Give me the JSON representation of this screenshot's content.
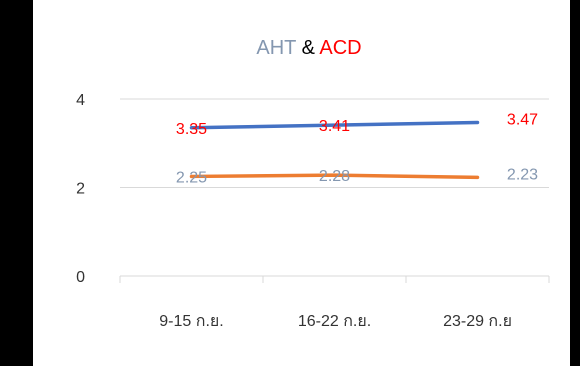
{
  "chart_data": {
    "type": "line",
    "title_parts": [
      {
        "text": "AHT",
        "color": "#8497B0"
      },
      {
        "text": " & ",
        "color": "#000000"
      },
      {
        "text": "ACD",
        "color": "#FF0000"
      }
    ],
    "categories": [
      "9-15 ก.ย.",
      "16-22 ก.ย.",
      "23-29 ก.ย"
    ],
    "series": [
      {
        "values": [
          3.35,
          3.41,
          3.47
        ],
        "line_color": "#4472C4",
        "label_color": "#FF0000",
        "labels": [
          "3.35",
          "3.41",
          "3.47"
        ]
      },
      {
        "values": [
          2.25,
          2.28,
          2.23
        ],
        "line_color": "#ED7D31",
        "label_color": "#8497B0",
        "labels": [
          "2.25",
          "2.28",
          "2.23"
        ]
      }
    ],
    "yticks": [
      "0",
      "2",
      "4"
    ],
    "ylim": [
      0,
      4
    ],
    "grid": true,
    "legend": false,
    "gridline_color": "#D9D9D9"
  }
}
